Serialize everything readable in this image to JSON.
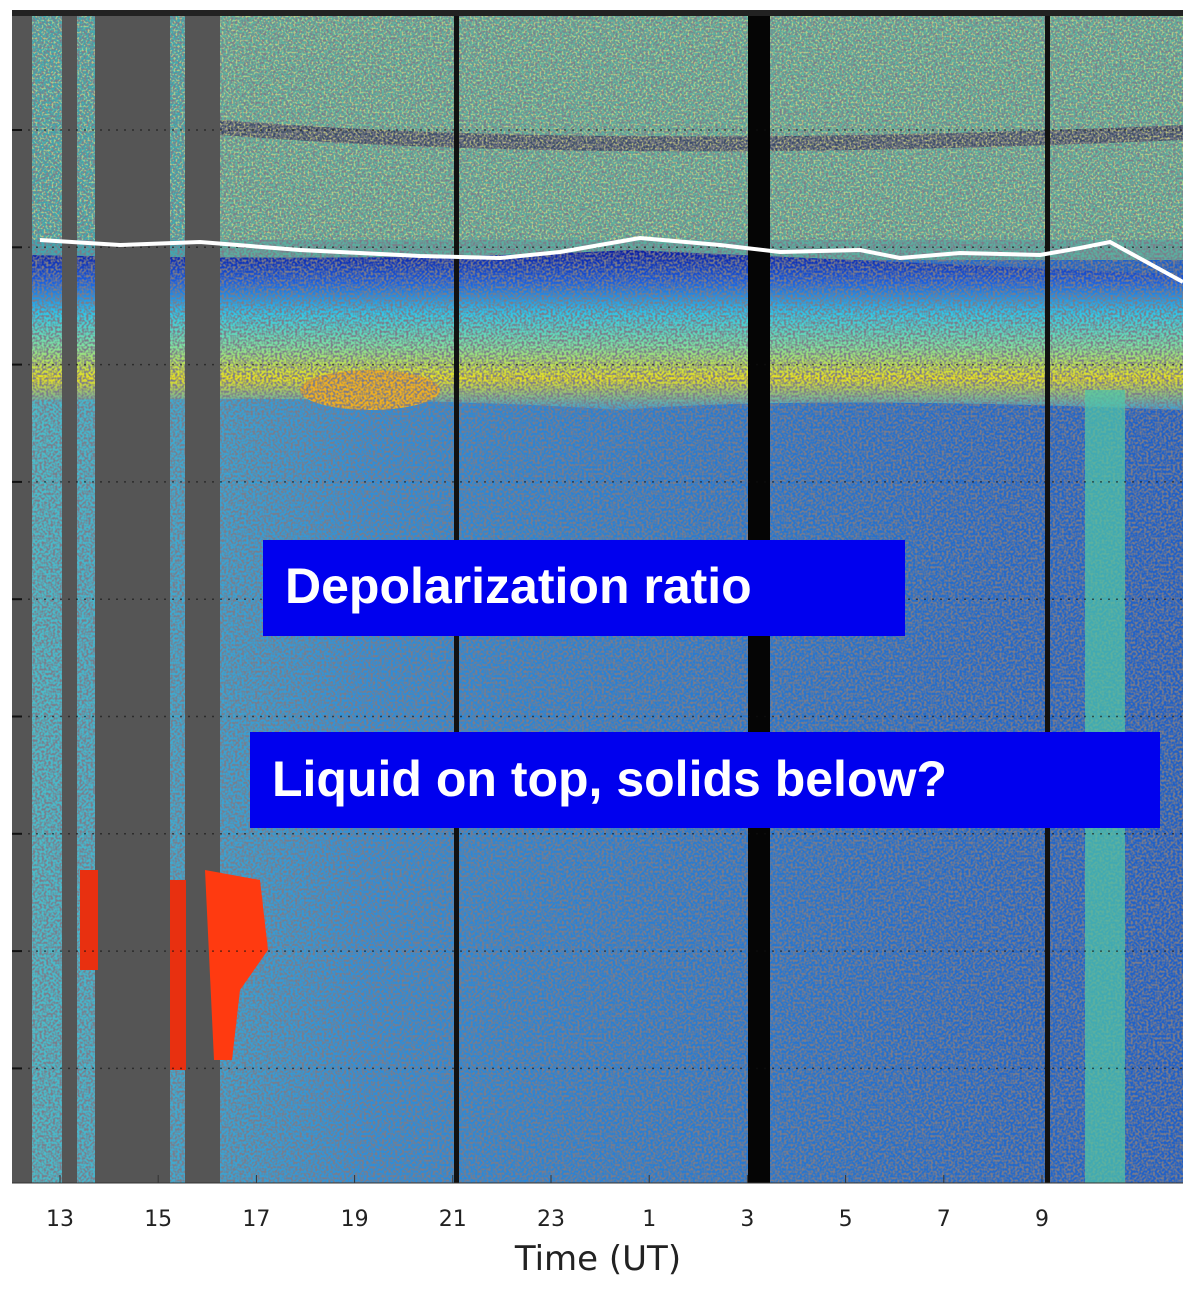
{
  "x_axis": {
    "label": "Time (UT)",
    "ticks": [
      "13",
      "15",
      "17",
      "19",
      "21",
      "23",
      "1",
      "3",
      "5",
      "7",
      "9"
    ]
  },
  "annotations": [
    "Depolarization ratio",
    "Liquid on top, solids below?"
  ]
}
